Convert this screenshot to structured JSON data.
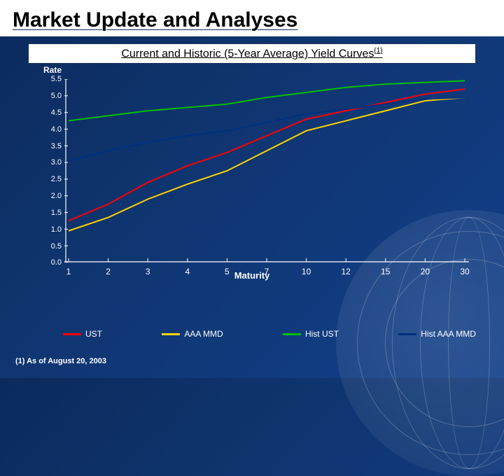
{
  "slide": {
    "title": "Market Update and Analyses",
    "subtitle": "Current and Historic (5-Year Average) Yield Curves",
    "subtitle_sup": "(1)",
    "footnote": "(1) As of August 20, 2003"
  },
  "chart": {
    "type": "line",
    "y_label": "Rate",
    "x_label": "Maturity",
    "background_color": "transparent",
    "axis_color": "#ffffff",
    "ylim": [
      0.0,
      5.5
    ],
    "ytick_step": 0.5,
    "y_ticks": [
      "0.0",
      "0.5",
      "1.0",
      "1.5",
      "2.0",
      "2.5",
      "3.0",
      "3.5",
      "4.0",
      "4.5",
      "5.0",
      "5.5"
    ],
    "x_categories": [
      "1",
      "2",
      "3",
      "4",
      "5",
      "7",
      "10",
      "12",
      "15",
      "20",
      "30"
    ],
    "line_width": 2,
    "label_fontsize": 12,
    "tick_fontsize": 11,
    "series": [
      {
        "name": "UST",
        "color": "#ff0000",
        "values": [
          1.25,
          1.75,
          2.4,
          2.9,
          3.3,
          3.8,
          4.3,
          4.55,
          4.8,
          5.05,
          5.2
        ]
      },
      {
        "name": "AAA MMD",
        "color": "#ffd400",
        "values": [
          0.95,
          1.35,
          1.9,
          2.35,
          2.75,
          3.35,
          3.95,
          4.25,
          4.55,
          4.85,
          4.95
        ]
      },
      {
        "name": "Hist UST",
        "color": "#00c000",
        "values": [
          4.25,
          4.4,
          4.55,
          4.65,
          4.75,
          4.95,
          5.1,
          5.25,
          5.35,
          5.4,
          5.45
        ]
      },
      {
        "name": "Hist AAA MMD",
        "color": "#003080",
        "values": [
          3.05,
          3.35,
          3.6,
          3.8,
          3.95,
          4.2,
          4.45,
          4.6,
          4.75,
          4.9,
          4.95
        ]
      }
    ],
    "legend_labels": {
      "ust": "UST",
      "aaa": "AAA MMD",
      "hist_ust": "Hist UST",
      "hist_aaa": "Hist AAA MMD"
    }
  }
}
